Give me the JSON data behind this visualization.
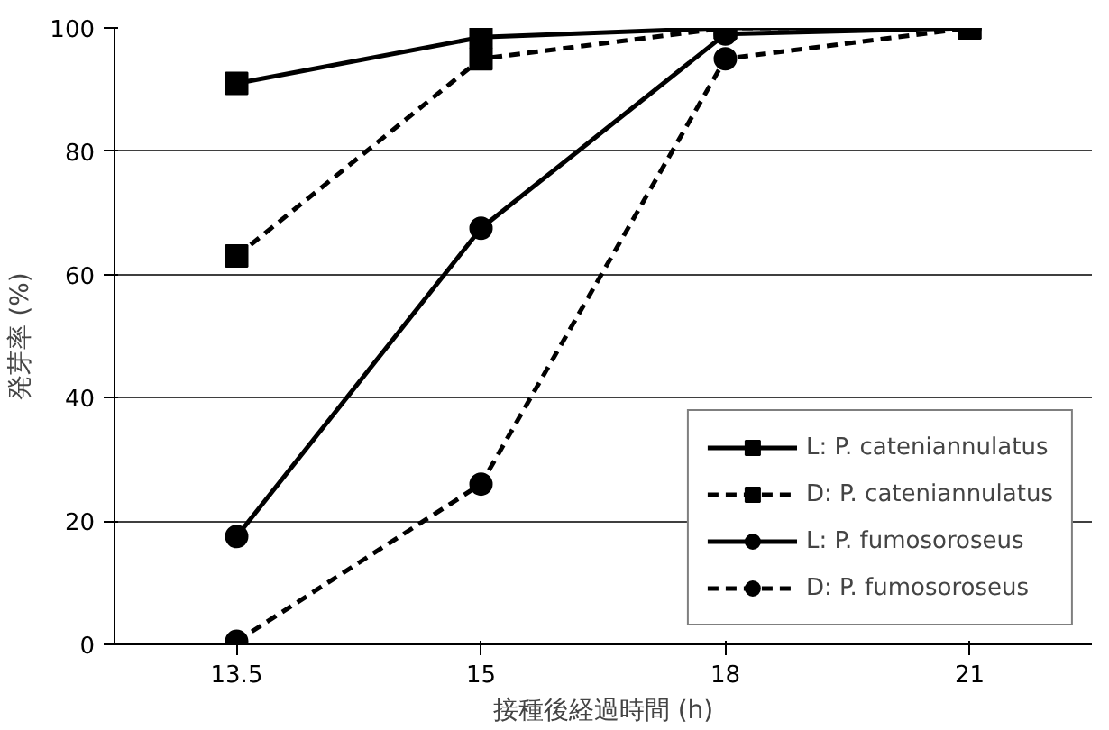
{
  "chart_data": {
    "type": "line",
    "xlabel": "接種後経過時間 (h)",
    "ylabel": "発芽率 (%)",
    "categories": [
      "13.5",
      "15",
      "18",
      "21"
    ],
    "ylim": [
      0,
      100
    ],
    "yticks": [
      0,
      20,
      40,
      60,
      80,
      100
    ],
    "grid": "y",
    "legend": "bottom right",
    "series": [
      {
        "name": "L: P. cateniannulatus",
        "color": "#000000",
        "marker": "square",
        "line_style": "solid",
        "values": [
          91,
          98.5,
          100,
          100
        ]
      },
      {
        "name": "D: P. cateniannulatus",
        "color": "#000000",
        "marker": "square",
        "line_style": "dashed",
        "values": [
          63,
          95,
          100,
          100
        ]
      },
      {
        "name": "L: P. fumosoroseus",
        "color": "#000000",
        "marker": "circle",
        "line_style": "solid",
        "values": [
          17.5,
          67.5,
          99,
          100
        ]
      },
      {
        "name": "D: P. fumosoroseus",
        "color": "#000000",
        "marker": "circle",
        "line_style": "dashed",
        "values": [
          0.5,
          26,
          95,
          100
        ]
      }
    ]
  }
}
